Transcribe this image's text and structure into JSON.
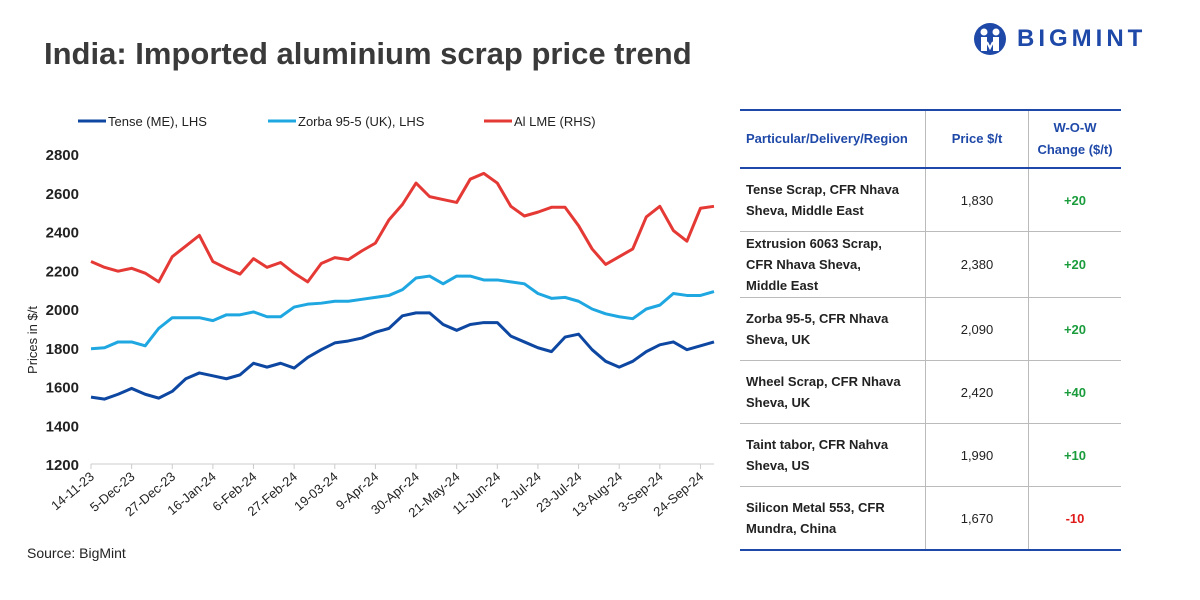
{
  "title": "India: Imported aluminium scrap price trend",
  "logo_text": "BIGMINT",
  "source": "Source: BigMint",
  "colors": {
    "tense": "#0d47a1",
    "zorba": "#1ea7e1",
    "lme": "#e53935",
    "up": "#1a9c3c",
    "down": "#e01b1b",
    "brand": "#1f49a8"
  },
  "chart_data": {
    "type": "line",
    "title": "India: Imported aluminium scrap price trend",
    "ylabel": "Prices in $/t",
    "ylim": [
      1200,
      2800
    ],
    "yticks": [
      2800,
      2600,
      2400,
      2200,
      2000,
      1800,
      1600,
      1400,
      1200
    ],
    "xticklabels": [
      "14-11-23",
      "5-Dec-23",
      "27-Dec-23",
      "16-Jan-24",
      "6-Feb-24",
      "27-Feb-24",
      "19-03-24",
      "9-Apr-24",
      "30-Apr-24",
      "21-May-24",
      "11-Jun-24",
      "2-Jul-24",
      "23-Jul-24",
      "13-Aug-24",
      "3-Sep-24",
      "24-Sep-24"
    ],
    "tick_every": 3,
    "legend_position": "top",
    "series": [
      {
        "name": "Tense (ME), LHS",
        "color": "#0d47a1",
        "values": [
          1545,
          1535,
          1560,
          1590,
          1560,
          1540,
          1575,
          1640,
          1670,
          1655,
          1640,
          1660,
          1720,
          1700,
          1720,
          1695,
          1750,
          1790,
          1825,
          1835,
          1850,
          1880,
          1900,
          1965,
          1980,
          1980,
          1920,
          1890,
          1920,
          1930,
          1930,
          1860,
          1830,
          1800,
          1780,
          1855,
          1870,
          1790,
          1730,
          1700,
          1730,
          1780,
          1815,
          1830,
          1790,
          1810,
          1830
        ]
      },
      {
        "name": "Zorba 95-5 (UK), LHS",
        "color": "#1ea7e1",
        "values": [
          1795,
          1800,
          1830,
          1830,
          1810,
          1900,
          1955,
          1955,
          1955,
          1940,
          1970,
          1970,
          1985,
          1960,
          1960,
          2010,
          2025,
          2030,
          2040,
          2040,
          2050,
          2060,
          2070,
          2100,
          2160,
          2170,
          2130,
          2170,
          2170,
          2150,
          2150,
          2140,
          2130,
          2080,
          2055,
          2060,
          2040,
          2000,
          1975,
          1960,
          1950,
          2000,
          2020,
          2080,
          2070,
          2070,
          2090
        ]
      },
      {
        "name": "Al LME (RHS)",
        "color": "#e53935",
        "values": [
          2245,
          2215,
          2195,
          2210,
          2185,
          2140,
          2270,
          2325,
          2380,
          2245,
          2210,
          2180,
          2260,
          2215,
          2240,
          2185,
          2140,
          2235,
          2265,
          2255,
          2300,
          2340,
          2460,
          2540,
          2650,
          2580,
          2565,
          2550,
          2670,
          2700,
          2650,
          2530,
          2480,
          2500,
          2525,
          2525,
          2430,
          2310,
          2230,
          2270,
          2310,
          2475,
          2530,
          2405,
          2350,
          2520,
          2530
        ]
      }
    ]
  },
  "table": {
    "headers": [
      "Particular/Delivery/Region",
      "Price $/t",
      "W-O-W Change ($/t)"
    ],
    "rows": [
      {
        "particular": "Tense Scrap, CFR Nhava Sheva, Middle East",
        "price": "1,830",
        "change": "+20"
      },
      {
        "particular": "Extrusion 6063 Scrap, CFR Nhava Sheva, Middle East",
        "price": "2,380",
        "change": "+20"
      },
      {
        "particular": "Zorba 95-5, CFR Nhava Sheva, UK",
        "price": "2,090",
        "change": "+20"
      },
      {
        "particular": "Wheel Scrap, CFR Nhava Sheva, UK",
        "price": "2,420",
        "change": "+40"
      },
      {
        "particular": "Taint tabor, CFR Nahva Sheva, US",
        "price": "1,990",
        "change": "+10"
      },
      {
        "particular": "Silicon Metal 553, CFR Mundra, China",
        "price": "1,670",
        "change": "-10"
      }
    ]
  }
}
